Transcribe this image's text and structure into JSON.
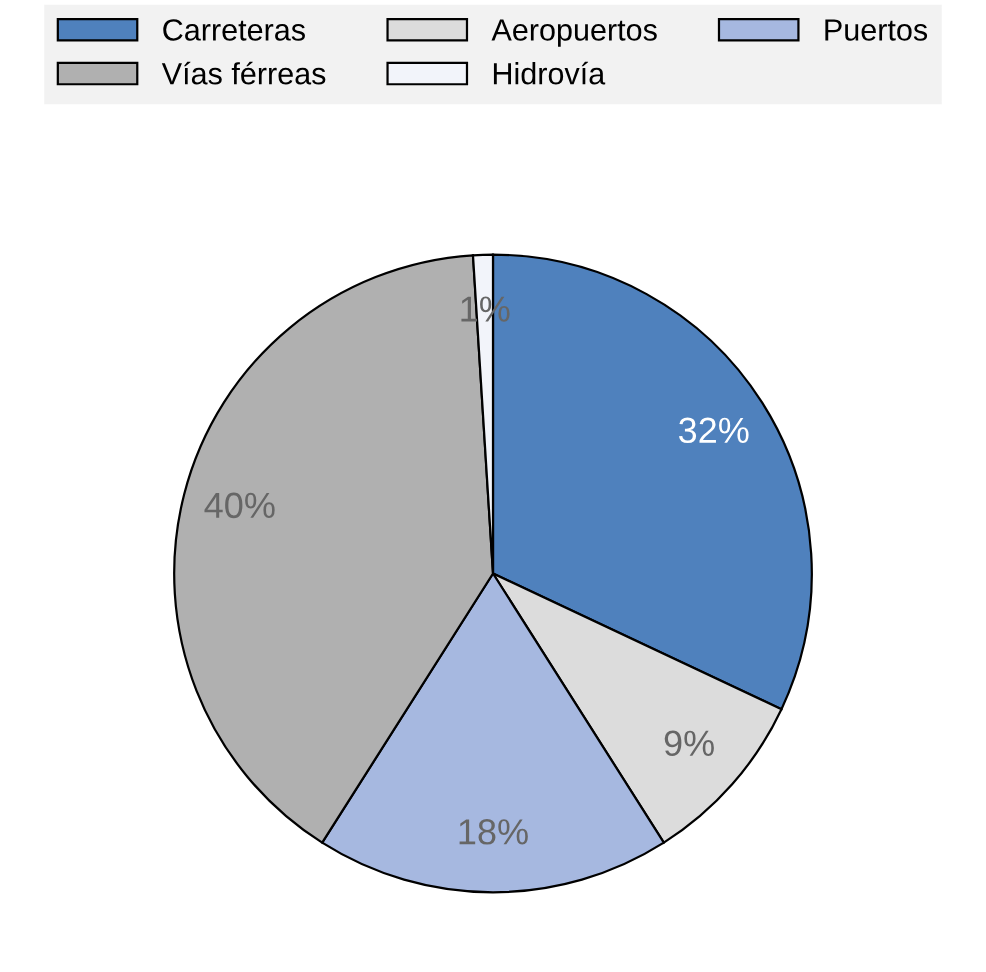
{
  "chart_data": {
    "type": "pie",
    "categories": [
      "Carreteras",
      "Aeropuertos",
      "Puertos",
      "Vías férreas",
      "Hidrovía"
    ],
    "values": [
      32,
      9,
      18,
      40,
      1
    ],
    "colors": [
      "#4f81bd",
      "#dcdcdc",
      "#a6b8e0",
      "#b0b0b0",
      "#f2f4fa"
    ],
    "value_labels": [
      "32%",
      "9%",
      "18%",
      "40%",
      "1%"
    ],
    "legend": "top"
  }
}
